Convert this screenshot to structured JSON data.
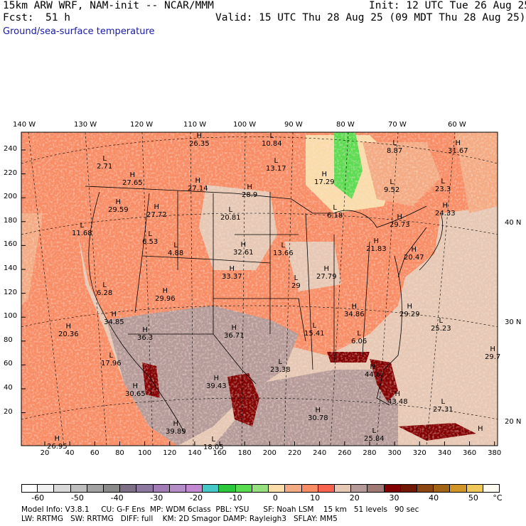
{
  "header": {
    "title_left": "15km ARW WRF, NAM-init -- NCAR/MMM",
    "init": "Init: 12 UTC Tue 26 Aug 25",
    "fcst_label": "Fcst:",
    "fcst_value": "51 h",
    "valid": "Valid: 15 UTC Thu 28 Aug 25 (09 MDT Thu 28 Aug 25)",
    "field": "Ground/sea-surface temperature"
  },
  "axes": {
    "top_lon": [
      "140 W",
      "130 W",
      "120 W",
      "110 W",
      "100 W",
      "90 W",
      "80 W",
      "70 W",
      "60 W"
    ],
    "right_lat": [
      "40 N",
      "30 N",
      "20 N"
    ],
    "left_y": [
      "240",
      "220",
      "200",
      "180",
      "160",
      "140",
      "120",
      "100",
      "80",
      "60",
      "40",
      "20"
    ],
    "bottom_x": [
      "20",
      "40",
      "60",
      "80",
      "100",
      "120",
      "140",
      "160",
      "180",
      "200",
      "220",
      "240",
      "260",
      "280",
      "300",
      "320",
      "340",
      "360",
      "380"
    ]
  },
  "map_labels": [
    {
      "letter": "L",
      "value": "2.71"
    },
    {
      "letter": "H",
      "value": "26.35"
    },
    {
      "letter": "L",
      "value": "10.84"
    },
    {
      "letter": "L",
      "value": "8.87"
    },
    {
      "letter": "H",
      "value": "31.67"
    },
    {
      "letter": "H",
      "value": "27.65"
    },
    {
      "letter": "H",
      "value": "27.14"
    },
    {
      "letter": "L",
      "value": "13.17"
    },
    {
      "letter": "H",
      "value": "17.29"
    },
    {
      "letter": "L",
      "value": "9.52"
    },
    {
      "letter": "L",
      "value": "23.3"
    },
    {
      "letter": "H",
      "value": "29.59"
    },
    {
      "letter": "H",
      "value": "27.72"
    },
    {
      "letter": "H",
      "value": "28.9"
    },
    {
      "letter": "L",
      "value": "20.81"
    },
    {
      "letter": "L",
      "value": "6.18"
    },
    {
      "letter": "H",
      "value": "24.33"
    },
    {
      "letter": "L",
      "value": "11.68"
    },
    {
      "letter": "L",
      "value": "6.53"
    },
    {
      "letter": "H",
      "value": "29.73"
    },
    {
      "letter": "L",
      "value": "4.88"
    },
    {
      "letter": "H",
      "value": "32.61"
    },
    {
      "letter": "L",
      "value": "13.66"
    },
    {
      "letter": "H",
      "value": "21.83"
    },
    {
      "letter": "H",
      "value": "20.47"
    },
    {
      "letter": "H",
      "value": "33.37"
    },
    {
      "letter": "H",
      "value": "27.79"
    },
    {
      "letter": "L",
      "value": "29"
    },
    {
      "letter": "L",
      "value": "6.28"
    },
    {
      "letter": "H",
      "value": "29.96"
    },
    {
      "letter": "H",
      "value": "34.86"
    },
    {
      "letter": "H",
      "value": "29.29"
    },
    {
      "letter": "H",
      "value": "34.85"
    },
    {
      "letter": "H",
      "value": "36.3"
    },
    {
      "letter": "H",
      "value": "36.71"
    },
    {
      "letter": "L",
      "value": "15.41"
    },
    {
      "letter": "L",
      "value": "25.23"
    },
    {
      "letter": "H",
      "value": "20.36"
    },
    {
      "letter": "L",
      "value": "6.06"
    },
    {
      "letter": "H",
      "value": "29.7"
    },
    {
      "letter": "L",
      "value": "17.96"
    },
    {
      "letter": "L",
      "value": "23.38"
    },
    {
      "letter": "H",
      "value": "44.6"
    },
    {
      "letter": "H",
      "value": "39.43"
    },
    {
      "letter": "H",
      "value": "30.65"
    },
    {
      "letter": "H",
      "value": "43.48"
    },
    {
      "letter": "L",
      "value": "27.31"
    },
    {
      "letter": "H",
      "value": "30.78"
    },
    {
      "letter": "H",
      "value": "39.89"
    },
    {
      "letter": "H",
      "value": "26.95"
    },
    {
      "letter": "L",
      "value": "18.05"
    },
    {
      "letter": "L",
      "value": "25.84"
    },
    {
      "letter": "H",
      "value": ""
    }
  ],
  "colorbar": {
    "colors": [
      "#ffffff",
      "#f0f0f0",
      "#d8d8d8",
      "#bebebe",
      "#a2a2a2",
      "#8a8a8a",
      "#7c6f86",
      "#8c78a0",
      "#a27cb6",
      "#b48cc8",
      "#c288d2",
      "#46c8c8",
      "#2cc83c",
      "#5adc50",
      "#96e080",
      "#fadcaa",
      "#f4aa82",
      "#f88c64",
      "#f86450",
      "#e6c8b4",
      "#b49a98",
      "#a07874",
      "#820000",
      "#701800",
      "#8c4614",
      "#a06414",
      "#d29628",
      "#f0c85a",
      "#fffaf0"
    ],
    "labels": [
      "-60",
      "-50",
      "-40",
      "-30",
      "-20",
      "-10",
      "0",
      "10",
      "20",
      "30",
      "40",
      "50"
    ],
    "unit": "°C"
  },
  "footer": {
    "line1": "Model Info: V3.8.1     CU: G-F Ens  MP: WDM 6class  PBL: YSU      SF: Noah LSM    15 km   51 levels   90 sec",
    "line2": "LW: RRTMG   SW: RRTMG   DIFF: full    KM: 2D Smagor DAMP: Rayleigh3   SFLAY: MM5"
  }
}
